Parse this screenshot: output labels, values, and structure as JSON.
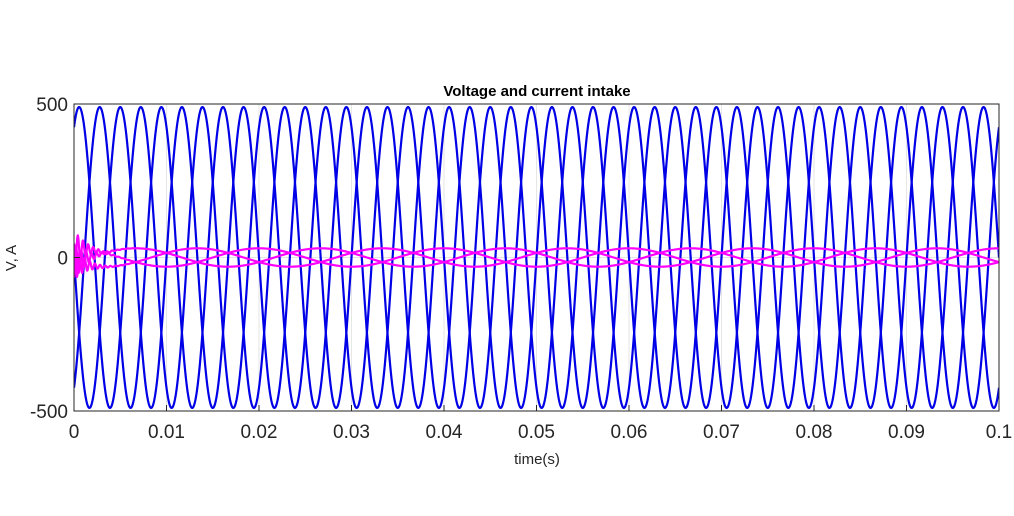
{
  "chart_data": {
    "type": "line",
    "title": "Voltage and current intake",
    "xlabel": "time(s)",
    "ylabel": "V, A",
    "xlim": [
      0,
      0.1
    ],
    "ylim": [
      -500,
      500
    ],
    "xticks": [
      0,
      0.01,
      0.02,
      0.03,
      0.04,
      0.05,
      0.06,
      0.07,
      0.08,
      0.09,
      0.1
    ],
    "xtick_labels": [
      "0",
      "0.01",
      "0.02",
      "0.03",
      "0.04",
      "0.05",
      "0.06",
      "0.07",
      "0.08",
      "0.09",
      "0.1"
    ],
    "yticks": [
      -500,
      0,
      500
    ],
    "ytick_labels": [
      "-500",
      "0",
      "500"
    ],
    "grid": true,
    "legend": "none",
    "series": [
      {
        "group": "voltage",
        "color": "#0000e6",
        "amplitude": 490,
        "frequency_hz": 150,
        "phase_deg": 60
      },
      {
        "group": "voltage",
        "color": "#0000e6",
        "amplitude": 490,
        "frequency_hz": 150,
        "phase_deg": -60
      },
      {
        "group": "voltage",
        "color": "#0000e6",
        "amplitude": 490,
        "frequency_hz": 150,
        "phase_deg": 180
      },
      {
        "group": "current",
        "color": "#ff00ff",
        "steady_amplitude": 30,
        "frequency_hz": 50,
        "phase_deg": 90,
        "initial_oscillation_amplitude": 60,
        "initial_oscillation_duration_s": 0.003
      },
      {
        "group": "current",
        "color": "#ff00ff",
        "steady_amplitude": 30,
        "frequency_hz": 50,
        "phase_deg": -30,
        "initial_oscillation_amplitude": 60,
        "initial_oscillation_duration_s": 0.003
      },
      {
        "group": "current",
        "color": "#ff00ff",
        "steady_amplitude": 30,
        "frequency_hz": 50,
        "phase_deg": 210,
        "initial_oscillation_amplitude": 60,
        "initial_oscillation_duration_s": 0.003
      }
    ]
  }
}
